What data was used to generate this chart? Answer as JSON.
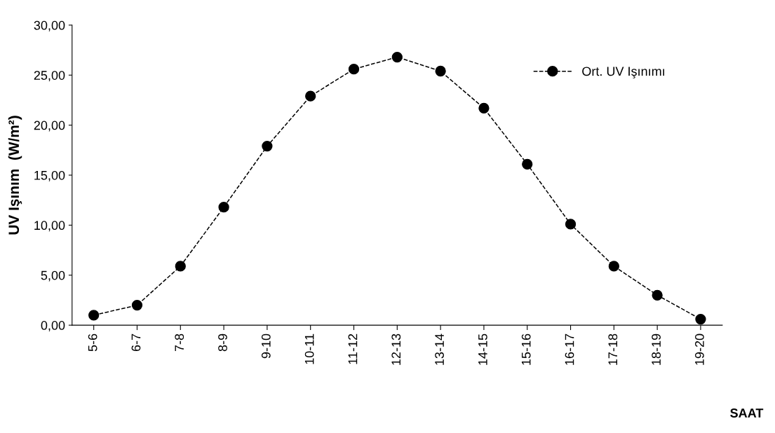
{
  "chart_data": {
    "type": "line",
    "xlabel": "SAAT",
    "ylabel": "UV Işınım  (W/m²)",
    "categories": [
      "5-6",
      "6-7",
      "7-8",
      "8-9",
      "9-10",
      "10-11",
      "11-12",
      "12-13",
      "13-14",
      "14-15",
      "15-16",
      "16-17",
      "17-18",
      "18-19",
      "19-20"
    ],
    "series": [
      {
        "name": "Ort. UV Işınımı",
        "color": "#000000",
        "values": [
          1.0,
          2.0,
          5.9,
          11.8,
          17.9,
          22.9,
          25.6,
          26.8,
          25.4,
          21.7,
          16.1,
          10.1,
          5.9,
          3.0,
          0.6
        ]
      }
    ],
    "ylim": [
      0,
      30
    ],
    "yticks": [
      {
        "value": 0,
        "label": "0,00"
      },
      {
        "value": 5,
        "label": "5,00"
      },
      {
        "value": 10,
        "label": "10,00"
      },
      {
        "value": 15,
        "label": "15,00"
      },
      {
        "value": 20,
        "label": "20,00"
      },
      {
        "value": 25,
        "label": "25,00"
      },
      {
        "value": 30,
        "label": "30,00"
      }
    ],
    "grid": false,
    "legend": "top right",
    "marker": "circle",
    "line_style": "dashed"
  }
}
